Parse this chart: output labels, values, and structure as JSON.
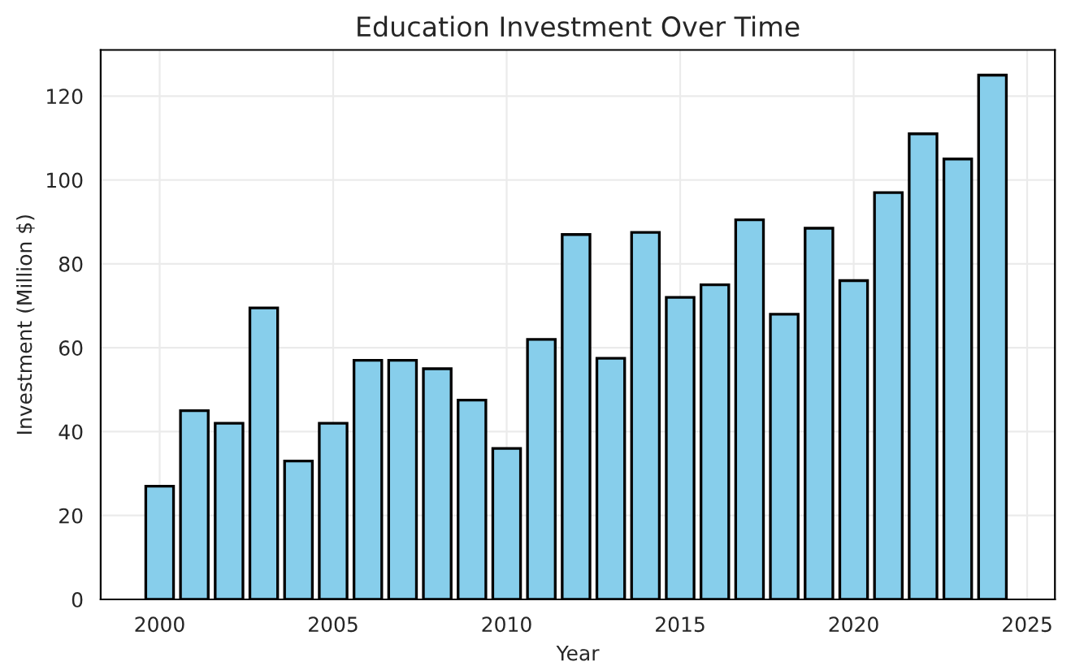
{
  "chart_data": {
    "type": "bar",
    "title": "Education Investment Over Time",
    "xlabel": "Year",
    "ylabel": "Investment (Million $)",
    "x": [
      2000,
      2001,
      2002,
      2003,
      2004,
      2005,
      2006,
      2007,
      2008,
      2009,
      2010,
      2011,
      2012,
      2013,
      2014,
      2015,
      2016,
      2017,
      2018,
      2019,
      2020,
      2021,
      2022,
      2023,
      2024
    ],
    "values": [
      27,
      45,
      42,
      69.5,
      33,
      42,
      57,
      57,
      55,
      47.5,
      36,
      62,
      87,
      57.5,
      87.5,
      72,
      75,
      90.5,
      68,
      88.5,
      76,
      97,
      111,
      105,
      125
    ],
    "color": "#87ceeb",
    "xlim": [
      1998.3,
      2025.8
    ],
    "xticks": [
      2000,
      2005,
      2010,
      2015,
      2020,
      2025
    ],
    "ylim": [
      0,
      131
    ],
    "yticks": [
      0,
      20,
      40,
      60,
      80,
      100,
      120
    ],
    "grid": true
  }
}
